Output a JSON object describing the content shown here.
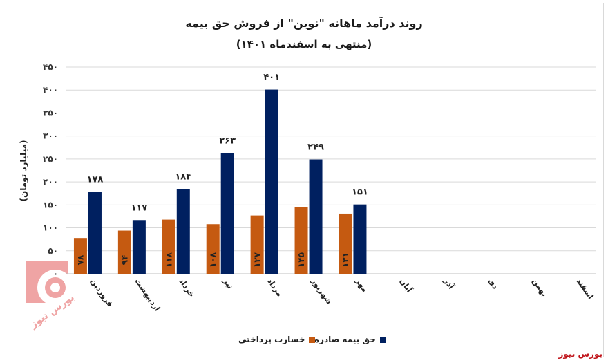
{
  "chart_data": {
    "type": "bar",
    "title": "روند درآمد ماهانه \"نوین\" از فروش حق بیمه",
    "subtitle": "(منتهی به اسفندماه ۱۴۰۱)",
    "ylabel": "(میلیارد تومان)",
    "ylim": [
      0,
      450
    ],
    "yticks": [
      "۰",
      "۵۰",
      "۱۰۰",
      "۱۵۰",
      "۲۰۰",
      "۲۵۰",
      "۳۰۰",
      "۳۵۰",
      "۴۰۰",
      "۴۵۰"
    ],
    "grid": true,
    "legend_position": "bottom",
    "categories": [
      "فروردین",
      "اردیبهشت",
      "خرداد",
      "تیر",
      "مرداد",
      "شهریور",
      "مهر",
      "آبان",
      "آذر",
      "دی",
      "بهمن",
      "اسفند"
    ],
    "series": [
      {
        "name": "خسارت پرداختی",
        "color": "#c55a11",
        "values": [
          78,
          94,
          118,
          108,
          127,
          145,
          131,
          null,
          null,
          null,
          null,
          null
        ],
        "labels": [
          "۷۸",
          "۹۴",
          "۱۱۸",
          "۱۰۸",
          "۱۲۷",
          "۱۴۵",
          "۱۳۱",
          "",
          "",
          "",
          "",
          ""
        ]
      },
      {
        "name": "حق بیمه صادره",
        "color": "#002060",
        "values": [
          178,
          117,
          184,
          263,
          401,
          249,
          151,
          null,
          null,
          null,
          null,
          null
        ],
        "labels": [
          "۱۷۸",
          "۱۱۷",
          "۱۸۴",
          "۲۶۳",
          "۴۰۱",
          "۲۴۹",
          "۱۵۱",
          "",
          "",
          "",
          "",
          ""
        ]
      }
    ]
  },
  "source": "بورس نیوز",
  "watermark_text": "بورس نیوز"
}
